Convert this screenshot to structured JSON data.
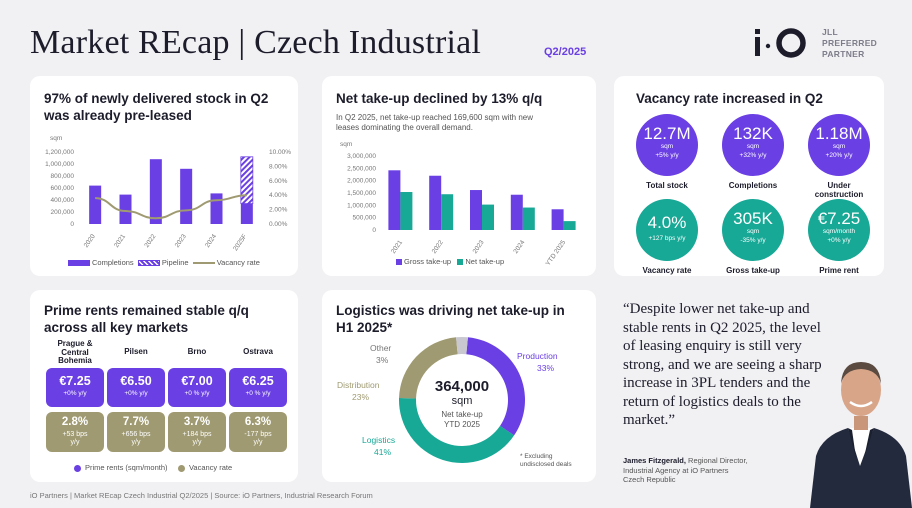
{
  "header": {
    "title": "Market REcap | Czech Industrial",
    "quarter": "Q2/2025",
    "partner_lines": [
      "JLL",
      "PREFERRED",
      "PARTNER"
    ]
  },
  "colors": {
    "purple": "#6a3fe3",
    "teal": "#17a896",
    "olive": "#9f9a71",
    "grey": "#c9c7cf"
  },
  "footer": "iO Partners | Market REcap Czech Industrial Q2/2025 | Source: iO Partners, Industrial Research Forum",
  "panel1": {
    "title_line1": "97% of newly delivered stock in Q2",
    "title_line2": "was already pre-leased",
    "unit": "sqm",
    "legend": {
      "completions": "Completions",
      "pipeline": "Pipeline",
      "vacancy": "Vacancy rate"
    }
  },
  "panel2": {
    "title": "Net take-up declined by 13% q/q",
    "subtitle_line1": "In Q2 2025, net take-up reached 169,600 sqm with new",
    "subtitle_line2": "leases dominating the overall demand.",
    "unit": "sqm",
    "legend": {
      "gross": "Gross take-up",
      "net": "Net take-up"
    }
  },
  "panel3": {
    "title": "Vacancy rate increased in Q2",
    "bubbles": [
      {
        "value": "12.7M",
        "unit": "sqm",
        "change": "+5% y/y",
        "label": "Total stock",
        "label2": "",
        "color": "purple"
      },
      {
        "value": "132K",
        "unit": "sqm",
        "change": "+32% y/y",
        "label": "Completions",
        "label2": "",
        "color": "purple"
      },
      {
        "value": "1.18M",
        "unit": "sqm",
        "change": "+20% y/y",
        "label": "Under",
        "label2": "construction",
        "color": "purple"
      },
      {
        "value": "4.0%",
        "unit": "",
        "change": "+127 bps y/y",
        "label": "Vacancy rate",
        "label2": "",
        "color": "teal"
      },
      {
        "value": "305K",
        "unit": "sqm",
        "change": "-35% y/y",
        "label": "Gross take-up",
        "label2": "",
        "color": "teal"
      },
      {
        "value": "€7.25",
        "unit": "sqm/month",
        "change": "+0% y/y",
        "label": "Prime rent",
        "label2": "",
        "color": "teal"
      }
    ]
  },
  "panel4": {
    "title_line1": "Prime rents remained stable q/q",
    "title_line2": "across all key markets",
    "markets": [
      {
        "city_lines": [
          "Prague &",
          "Central",
          "Bohemia"
        ],
        "rent": "€7.25",
        "rent_change": "+0% y/y",
        "vacancy": "2.8%",
        "vac_line1": "+53 bps",
        "vac_line2": "y/y"
      },
      {
        "city_lines": [
          "Pilsen"
        ],
        "rent": "€6.50",
        "rent_change": "+0% y/y",
        "vacancy": "7.7%",
        "vac_line1": "+656 bps",
        "vac_line2": "y/y"
      },
      {
        "city_lines": [
          "Brno"
        ],
        "rent": "€7.00",
        "rent_change": "+0 % y/y",
        "vacancy": "3.7%",
        "vac_line1": "+184 bps",
        "vac_line2": "y/y"
      },
      {
        "city_lines": [
          "Ostrava"
        ],
        "rent": "€6.25",
        "rent_change": "+0 % y/y",
        "vacancy": "6.3%",
        "vac_line1": "-177 bps",
        "vac_line2": "y/y"
      }
    ],
    "legend": {
      "rents": "Prime rents (sqm/month)",
      "vacancy": "Vacancy rate"
    }
  },
  "panel5": {
    "title_line1": "Logistics was driving net take-up in",
    "title_line2": "H1 2025*",
    "center_value": "364,000",
    "center_unit": "sqm",
    "center_line1": "Net take-up",
    "center_line2": "YTD 2025",
    "footnote_line1": "* Excluding",
    "footnote_line2": "undisclosed deals"
  },
  "quote": {
    "text": "“Despite lower net take-up and stable rents in Q2 2025, the level of leasing enquiry is still very strong, and we are seeing a sharp increase in 3PL tenders and the return of logistics deals to the market.”",
    "author_name": "James Fitzgerald,",
    "author_role": " Regional Director,",
    "author_line2": "Industrial Agency at iO Partners",
    "author_line3": "Czech Republic"
  },
  "chart_data": [
    {
      "type": "bar",
      "categories": [
        "2020",
        "2021",
        "2022",
        "2023",
        "2024",
        "2025F"
      ],
      "series": [
        {
          "name": "Completions",
          "values": [
            640000,
            490000,
            1080000,
            920000,
            510000,
            340000
          ]
        },
        {
          "name": "Pipeline",
          "values": [
            0,
            0,
            0,
            0,
            0,
            780000
          ]
        },
        {
          "name": "Vacancy rate",
          "values": [
            3.6,
            1.8,
            0.8,
            1.9,
            3.3,
            4.0
          ],
          "axis": "right"
        }
      ],
      "ylim": [
        0,
        1200000
      ],
      "yticks": [
        "0",
        "200,000",
        "400,000",
        "600,000",
        "800,000",
        "1,000,000",
        "1,200,000"
      ],
      "y2lim": [
        0,
        10
      ],
      "y2ticks": [
        "0.00%",
        "2.00%",
        "4.00%",
        "6.00%",
        "8.00%",
        "10.00%"
      ],
      "ylabel": "sqm",
      "legend": "bottom"
    },
    {
      "type": "bar",
      "categories": [
        "2021",
        "2022",
        "2023",
        "2024",
        "YTD 2025"
      ],
      "series": [
        {
          "name": "Gross take-up",
          "values": [
            2420000,
            2200000,
            1620000,
            1430000,
            840000
          ]
        },
        {
          "name": "Net take-up",
          "values": [
            1540000,
            1450000,
            1030000,
            910000,
            360000
          ]
        }
      ],
      "ylim": [
        0,
        3000000
      ],
      "yticks": [
        "0",
        "500,000",
        "1,000,000",
        "1,500,000",
        "2,000,000",
        "2,500,000",
        "3,000,000"
      ],
      "ylabel": "sqm",
      "legend": "bottom"
    },
    {
      "type": "pie",
      "title": "Logistics was driving net take-up in H1 2025*",
      "series": [
        {
          "name": "Production",
          "value": 33,
          "label": "33%",
          "color": "#6a3fe3"
        },
        {
          "name": "Logistics",
          "value": 41,
          "label": "41%",
          "color": "#17a896"
        },
        {
          "name": "Distribution",
          "value": 23,
          "label": "23%",
          "color": "#9f9a71"
        },
        {
          "name": "Other",
          "value": 3,
          "label": "3%",
          "color": "#c9c7cf"
        }
      ]
    }
  ]
}
